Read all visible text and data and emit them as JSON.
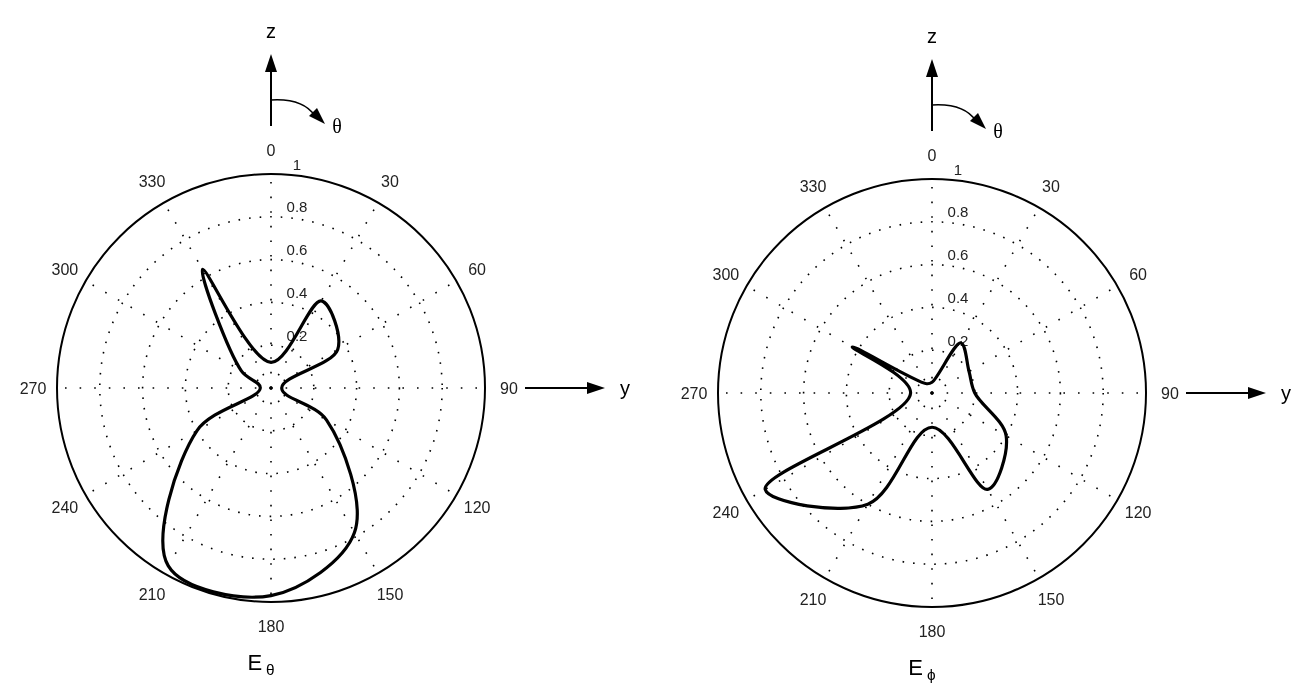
{
  "chart_data": [
    {
      "type": "radar",
      "title": "E$_{θ}$",
      "categories": [
        "0",
        "30",
        "60",
        "90",
        "120",
        "150",
        "180",
        "210",
        "240",
        "270",
        "300",
        "330"
      ],
      "series": [
        {
          "color": "#000000",
          "values": [
            0.12,
            0.47,
            0.36,
            0.05,
            0.3,
            0.78,
            0.97,
            0.96,
            0.4,
            0.05,
            0.16,
            0.64
          ]
        }
      ],
      "ylim": [
        0,
        1
      ],
      "yticks": [
        0.2,
        0.4,
        0.6,
        0.8,
        1
      ],
      "grid": true,
      "marker": "none",
      "line_style": "solid",
      "annotations": [
        "z",
        "θ",
        "y"
      ]
    },
    {
      "type": "radar",
      "title": "E$_{ϕ}$",
      "categories": [
        "0",
        "30",
        "60",
        "90",
        "120",
        "150",
        "180",
        "210",
        "240",
        "270",
        "300",
        "330"
      ],
      "series": [
        {
          "color": "#000000",
          "values": [
            0.05,
            0.27,
            0.2,
            0.2,
            0.4,
            0.52,
            0.16,
            0.6,
            0.9,
            0.1,
            0.43,
            0.05
          ]
        }
      ],
      "ylim": [
        0,
        1
      ],
      "yticks": [
        0.2,
        0.4,
        0.6,
        0.8,
        1
      ],
      "grid": true,
      "marker": "none",
      "line_style": "solid",
      "annotations": [
        "z",
        "θ",
        "y"
      ]
    }
  ]
}
